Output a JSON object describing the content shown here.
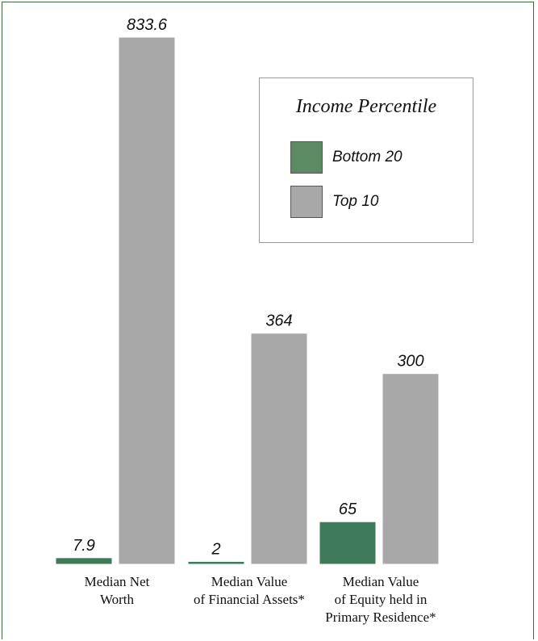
{
  "chart_data": {
    "type": "bar",
    "categories": [
      [
        "Median Net",
        "Worth"
      ],
      [
        "Median Value",
        "of Financial Assets*"
      ],
      [
        "Median Value",
        "of Equity held in",
        "Primary Residence*"
      ]
    ],
    "series": [
      {
        "name": "Bottom 20",
        "color": "#3f7a5a",
        "values": [
          7.9,
          2,
          65
        ],
        "labels": [
          "7.9",
          "2",
          "65"
        ]
      },
      {
        "name": "Top 10",
        "color": "#a8a8a8",
        "values": [
          833.6,
          364,
          300
        ],
        "labels": [
          "833.6",
          "364",
          "300"
        ]
      }
    ],
    "legend_title": "Income Percentile",
    "legend_position": "top-right",
    "ylim": [
      0,
      833.6
    ],
    "grid": false
  }
}
